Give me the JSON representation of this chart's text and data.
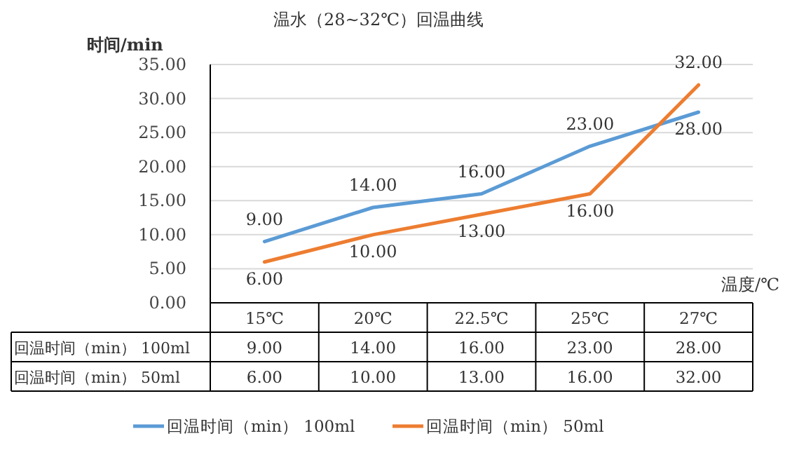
{
  "chart_data": {
    "type": "line",
    "title": "温水（28~32℃）回温曲线",
    "ylabel": "时间/min",
    "xlabel": "温度/℃",
    "categories": [
      "15℃",
      "20℃",
      "22.5℃",
      "25℃",
      "27℃"
    ],
    "ylim": [
      0,
      35
    ],
    "yticks": [
      {
        "value": 0,
        "label": "0.00"
      },
      {
        "value": 5,
        "label": "5.00"
      },
      {
        "value": 10,
        "label": "10.00"
      },
      {
        "value": 15,
        "label": "15.00"
      },
      {
        "value": 20,
        "label": "20.00"
      },
      {
        "value": 25,
        "label": "25.00"
      },
      {
        "value": 30,
        "label": "30.00"
      },
      {
        "value": 35,
        "label": "35.00"
      }
    ],
    "grid": "y",
    "legend": "bottom",
    "marker": "none",
    "line_style": "solid",
    "series": [
      {
        "name": "回温时间（min） 100ml",
        "color": "#5b9bd5",
        "values": [
          9,
          14,
          16,
          23,
          28
        ],
        "value_labels": [
          "9.00",
          "14.00",
          "16.00",
          "23.00",
          "28.00"
        ]
      },
      {
        "name": "回温时间（min） 50ml",
        "color": "#ed7d31",
        "values": [
          6,
          10,
          13,
          16,
          32
        ],
        "value_labels": [
          "6.00",
          "10.00",
          "13.00",
          "16.00",
          "32.00"
        ]
      }
    ]
  }
}
